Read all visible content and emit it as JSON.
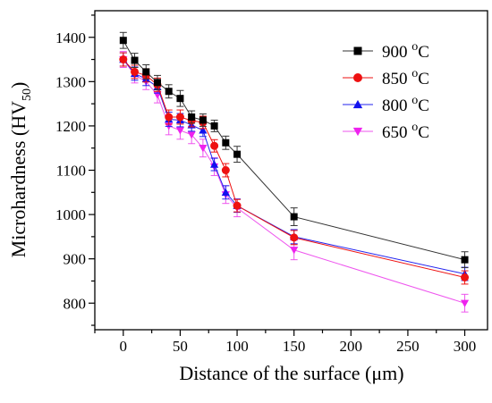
{
  "chart_data": {
    "type": "line",
    "xlabel": "Distance of the surface (μm)",
    "ylabel": "Microhardness (HV",
    "ylabel_subscript": "50",
    "ylabel_close": ")",
    "xlim": [
      -25,
      320
    ],
    "ylim": [
      740,
      1460
    ],
    "xticks": [
      0,
      50,
      100,
      150,
      200,
      250,
      300
    ],
    "yticks": [
      800,
      900,
      1000,
      1100,
      1200,
      1300,
      1400
    ],
    "x_minor_step": 25,
    "y_minor_step": 50,
    "grid": false,
    "legend_placement": "top-right",
    "series": [
      {
        "name": "900 °C",
        "temp": "900",
        "unit": "C",
        "color": "#000000",
        "line_color": "#333333",
        "marker": "square",
        "x": [
          0,
          10,
          20,
          30,
          40,
          50,
          60,
          70,
          80,
          90,
          100,
          150,
          300
        ],
        "y": [
          1393,
          1348,
          1322,
          1298,
          1278,
          1262,
          1220,
          1213,
          1200,
          1162,
          1136,
          995,
          898
        ],
        "err": [
          18,
          16,
          16,
          16,
          15,
          18,
          14,
          14,
          13,
          15,
          18,
          20,
          18
        ]
      },
      {
        "name": "850 °C",
        "temp": "850",
        "unit": "C",
        "color": "#ee1111",
        "line_color": "#ee1111",
        "marker": "circle",
        "x": [
          0,
          10,
          20,
          30,
          40,
          50,
          60,
          70,
          80,
          90,
          100,
          150,
          300
        ],
        "y": [
          1350,
          1322,
          1314,
          1293,
          1220,
          1220,
          1212,
          1208,
          1155,
          1100,
          1020,
          948,
          858
        ],
        "err": [
          15,
          15,
          15,
          15,
          16,
          16,
          14,
          14,
          14,
          15,
          14,
          16,
          15
        ]
      },
      {
        "name": "800 °C",
        "temp": "800",
        "unit": "C",
        "color": "#1111ee",
        "line_color": "#2222ee",
        "marker": "triangle-up",
        "x": [
          0,
          10,
          20,
          30,
          40,
          50,
          60,
          70,
          80,
          90,
          100,
          150,
          300
        ],
        "y": [
          1350,
          1318,
          1306,
          1288,
          1215,
          1213,
          1202,
          1190,
          1113,
          1050,
          1020,
          950,
          866
        ],
        "err": [
          15,
          15,
          15,
          14,
          16,
          15,
          14,
          14,
          14,
          15,
          15,
          16,
          15
        ]
      },
      {
        "name": "650 °C",
        "temp": "650",
        "unit": "C",
        "color": "#ee22ee",
        "line_color": "#ee55ee",
        "marker": "triangle-down",
        "x": [
          0,
          10,
          20,
          30,
          40,
          50,
          60,
          70,
          80,
          90,
          100,
          150,
          300
        ],
        "y": [
          1350,
          1315,
          1300,
          1270,
          1200,
          1190,
          1180,
          1150,
          1108,
          1045,
          1015,
          920,
          800
        ],
        "err": [
          18,
          18,
          18,
          18,
          20,
          20,
          20,
          20,
          20,
          20,
          20,
          22,
          20
        ]
      }
    ]
  }
}
